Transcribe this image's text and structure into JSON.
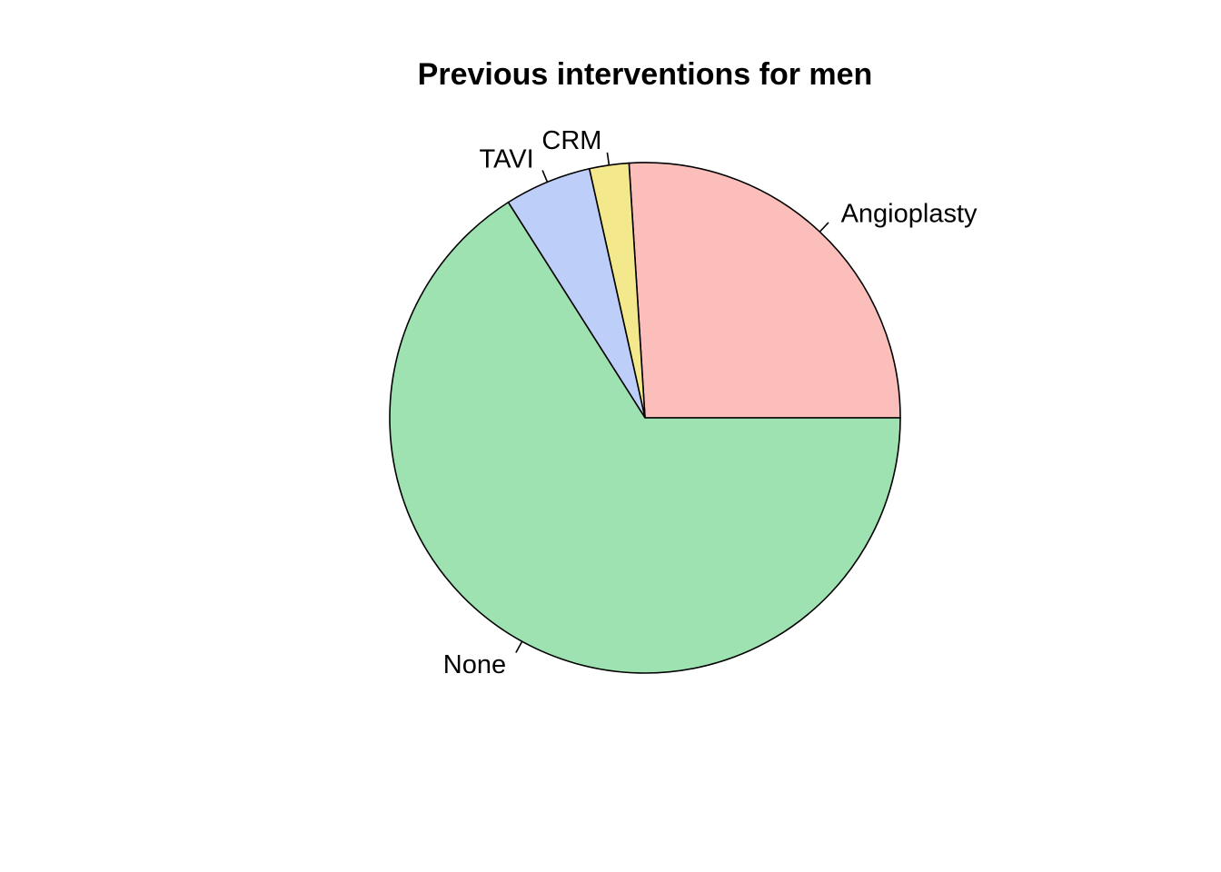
{
  "chart_data": {
    "type": "pie",
    "title": "Previous interventions for men",
    "direction": "counterclockwise",
    "start_angle_deg": 0,
    "slices": [
      {
        "label": "Angioplasty",
        "value": 26,
        "color": "#FBBEBA"
      },
      {
        "label": "CRM",
        "value": 2.5,
        "color": "#F4E88C"
      },
      {
        "label": "TAVI",
        "value": 5.5,
        "color": "#BDCFF8"
      },
      {
        "label": "None",
        "value": 66,
        "color": "#9EE2B1"
      }
    ]
  }
}
